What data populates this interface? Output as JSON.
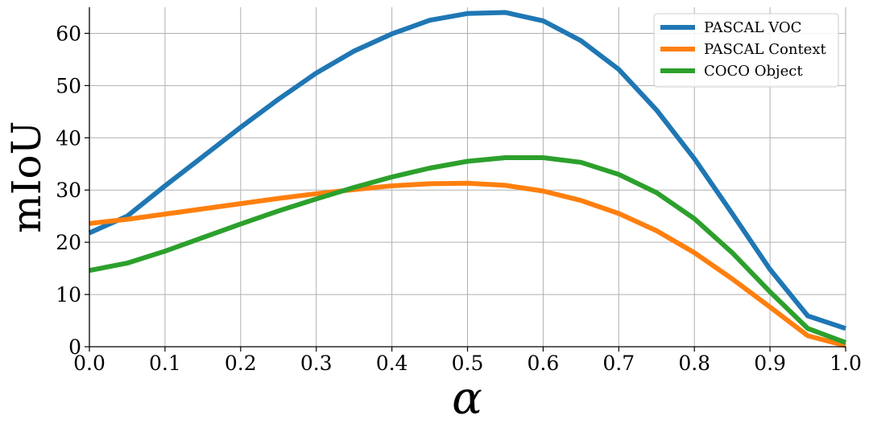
{
  "chart_data": {
    "type": "line",
    "title": "",
    "xlabel": "α",
    "ylabel": "mIoU",
    "xlim": [
      0.0,
      1.0
    ],
    "ylim": [
      0,
      65
    ],
    "grid": true,
    "legend_position": "top-right",
    "x_ticks": [
      "0.0",
      "0.1",
      "0.2",
      "0.3",
      "0.4",
      "0.5",
      "0.6",
      "0.7",
      "0.8",
      "0.9",
      "1.0"
    ],
    "y_ticks": [
      "0",
      "10",
      "20",
      "30",
      "40",
      "50",
      "60"
    ],
    "x": [
      0.0,
      0.05,
      0.1,
      0.15,
      0.2,
      0.25,
      0.3,
      0.35,
      0.4,
      0.45,
      0.5,
      0.55,
      0.6,
      0.65,
      0.7,
      0.75,
      0.8,
      0.85,
      0.9,
      0.95,
      1.0
    ],
    "series": [
      {
        "name": "PASCAL VOC",
        "color": "#1f77b4",
        "values": [
          21.8,
          25.0,
          30.8,
          36.4,
          42.0,
          47.4,
          52.4,
          56.6,
          59.9,
          62.5,
          63.8,
          64.0,
          62.4,
          58.6,
          53.1,
          45.3,
          36.0,
          25.5,
          14.8,
          5.9,
          3.5
        ]
      },
      {
        "name": "PASCAL Context",
        "color": "#ff7f0e",
        "values": [
          23.6,
          24.4,
          25.4,
          26.4,
          27.4,
          28.4,
          29.3,
          30.1,
          30.8,
          31.2,
          31.3,
          30.9,
          29.8,
          28.0,
          25.5,
          22.2,
          18.0,
          13.0,
          7.6,
          2.1,
          0.2
        ]
      },
      {
        "name": "COCO Object",
        "color": "#2ca02c",
        "values": [
          14.6,
          16.0,
          18.3,
          20.9,
          23.5,
          26.0,
          28.3,
          30.5,
          32.5,
          34.2,
          35.5,
          36.2,
          36.2,
          35.3,
          33.0,
          29.5,
          24.5,
          18.0,
          10.5,
          3.5,
          0.8
        ]
      }
    ]
  }
}
